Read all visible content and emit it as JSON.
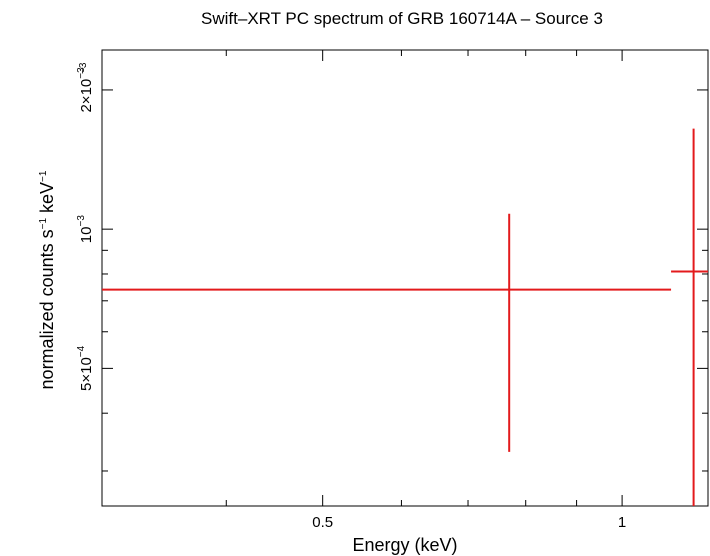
{
  "chart_data": {
    "type": "scatter",
    "title": "Swift–XRT PC spectrum of GRB 160714A – Source 3",
    "xlabel": "Energy (keV)",
    "ylabel": {
      "base": "normalized counts s",
      "exp1": "−1",
      "mid": " keV",
      "exp2": "−1"
    },
    "x_scale": "log",
    "y_scale": "log",
    "xlim": [
      0.3,
      1.22
    ],
    "ylim": [
      0.000252,
      0.00244
    ],
    "x_ticks": [
      {
        "value": 0.5,
        "label": "0.5"
      },
      {
        "value": 1,
        "label": "1"
      }
    ],
    "y_ticks": [
      {
        "value": 0.0005,
        "mant": "5×10",
        "exp": "−4"
      },
      {
        "value": 0.001,
        "mant": "10",
        "exp": "−3"
      },
      {
        "value": 0.002,
        "mant": "2×10",
        "exp": "−3"
      }
    ],
    "y_corner_exp": "−3",
    "series": [
      {
        "color": "#e31a1c",
        "points": [
          {
            "x": 0.77,
            "x_lo": 0.3,
            "x_hi": 1.12,
            "y": 0.00074,
            "y_lo": 0.00033,
            "y_hi": 0.00108
          },
          {
            "x": 1.18,
            "x_lo": 1.12,
            "x_hi": 1.22,
            "y": 0.00081,
            "y_lo": 0.000252,
            "y_hi": 0.00165
          }
        ]
      }
    ]
  }
}
